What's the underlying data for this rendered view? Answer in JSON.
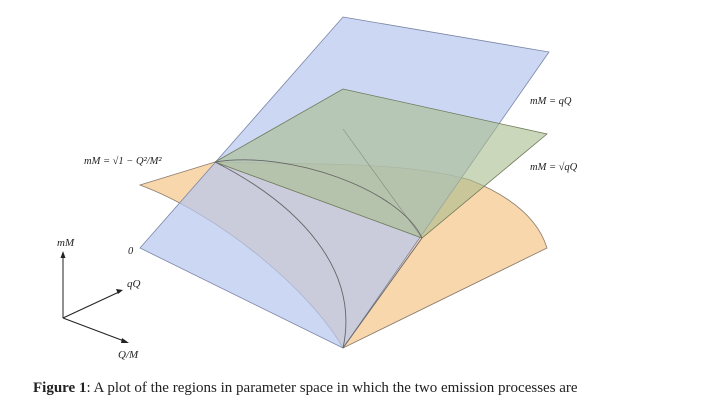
{
  "figure": {
    "labels": {
      "surface_top": "mM = qQ",
      "surface_mid": "mM = √qQ",
      "surface_left": "mM = √1 − Q²/M²",
      "zero_tick": "0"
    },
    "axes": {
      "vertical": "mM",
      "depth": "qQ",
      "horizontal": "Q/M"
    },
    "colors": {
      "blue_plane": "#b7c8ee",
      "green_surface": "#a9bc8c",
      "orange_surface": "#f6c78d",
      "edge": "#555555"
    }
  },
  "caption": {
    "label": "Figure 1",
    "text": ": A plot of the regions in parameter space in which the two emission processes are"
  }
}
